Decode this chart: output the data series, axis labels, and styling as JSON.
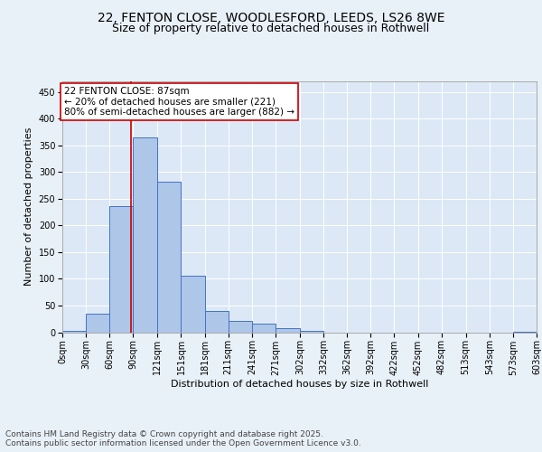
{
  "title1": "22, FENTON CLOSE, WOODLESFORD, LEEDS, LS26 8WE",
  "title2": "Size of property relative to detached houses in Rothwell",
  "xlabel": "Distribution of detached houses by size in Rothwell",
  "ylabel": "Number of detached properties",
  "bar_edges": [
    0,
    30,
    60,
    90,
    121,
    151,
    181,
    211,
    241,
    271,
    302,
    332,
    362,
    392,
    422,
    452,
    482,
    513,
    543,
    573,
    603
  ],
  "bar_heights": [
    3,
    35,
    237,
    365,
    282,
    106,
    40,
    21,
    16,
    7,
    2,
    0,
    0,
    0,
    0,
    0,
    0,
    0,
    0,
    1
  ],
  "bar_color": "#aec6e8",
  "bar_edgecolor": "#4472c4",
  "tick_labels": [
    "0sqm",
    "30sqm",
    "60sqm",
    "90sqm",
    "121sqm",
    "151sqm",
    "181sqm",
    "211sqm",
    "241sqm",
    "271sqm",
    "302sqm",
    "332sqm",
    "362sqm",
    "392sqm",
    "422sqm",
    "452sqm",
    "482sqm",
    "513sqm",
    "543sqm",
    "573sqm",
    "603sqm"
  ],
  "vline_x": 87,
  "vline_color": "#cc0000",
  "annotation_text": "22 FENTON CLOSE: 87sqm\n← 20% of detached houses are smaller (221)\n80% of semi-detached houses are larger (882) →",
  "annotation_box_color": "white",
  "annotation_box_edgecolor": "#cc0000",
  "ylim": [
    0,
    470
  ],
  "yticks": [
    0,
    50,
    100,
    150,
    200,
    250,
    300,
    350,
    400,
    450
  ],
  "background_color": "#e8f0f8",
  "plot_bg_color": "#dce8f5",
  "footer": "Contains HM Land Registry data © Crown copyright and database right 2025.\nContains public sector information licensed under the Open Government Licence v3.0.",
  "title_fontsize": 10,
  "subtitle_fontsize": 9,
  "axis_label_fontsize": 8,
  "tick_fontsize": 7,
  "annotation_fontsize": 7.5,
  "footer_fontsize": 6.5
}
